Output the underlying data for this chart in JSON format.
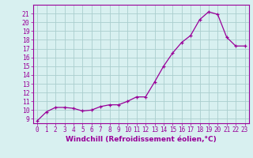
{
  "x": [
    0,
    1,
    2,
    3,
    4,
    5,
    6,
    7,
    8,
    9,
    10,
    11,
    12,
    13,
    14,
    15,
    16,
    17,
    18,
    19,
    20,
    21,
    22,
    23
  ],
  "y": [
    8.8,
    9.8,
    10.3,
    10.3,
    10.2,
    9.9,
    10.0,
    10.4,
    10.6,
    10.6,
    11.0,
    11.5,
    11.5,
    13.2,
    15.0,
    16.5,
    17.7,
    18.5,
    20.3,
    21.2,
    20.9,
    18.3,
    17.3,
    17.3
  ],
  "line_color": "#990099",
  "marker": "+",
  "bg_color": "#d8f0f0",
  "grid_color": "#aacece",
  "axis_color": "#990099",
  "xlabel": "Windchill (Refroidissement éolien,°C)",
  "ylim": [
    8.5,
    22
  ],
  "xlim": [
    -0.5,
    23.5
  ],
  "yticks": [
    9,
    10,
    11,
    12,
    13,
    14,
    15,
    16,
    17,
    18,
    19,
    20,
    21
  ],
  "xticks": [
    0,
    1,
    2,
    3,
    4,
    5,
    6,
    7,
    8,
    9,
    10,
    11,
    12,
    13,
    14,
    15,
    16,
    17,
    18,
    19,
    20,
    21,
    22,
    23
  ],
  "tick_fontsize": 5.5,
  "xlabel_fontsize": 6.5
}
